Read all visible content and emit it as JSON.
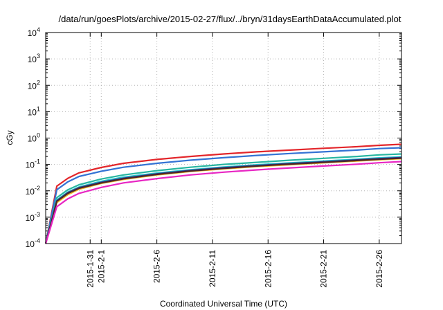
{
  "chart_data": {
    "type": "line",
    "title": "/data/run/goesPlots/archive/2015-02-27/flux/../bryn/31daysEarthDataAccumulated.plot",
    "xlabel": "Coordinated Universal Time (UTC)",
    "ylabel": "cGy",
    "y_scale": "log",
    "ylim": [
      0.0001,
      10000
    ],
    "xlim": [
      "2015-01-27",
      "2015-02-28"
    ],
    "grid": true,
    "x_ticks": [
      "2015-1-31",
      "2015-2-1",
      "2015-2-6",
      "2015-2-11",
      "2015-2-16",
      "2015-2-21",
      "2015-2-26"
    ],
    "y_ticks": [
      {
        "base": "10",
        "exp": "-4"
      },
      {
        "base": "10",
        "exp": "-3"
      },
      {
        "base": "10",
        "exp": "-2"
      },
      {
        "base": "10",
        "exp": "-1"
      },
      {
        "base": "10",
        "exp": "0"
      },
      {
        "base": "10",
        "exp": "1"
      },
      {
        "base": "10",
        "exp": "2"
      },
      {
        "base": "10",
        "exp": "3"
      },
      {
        "base": "10",
        "exp": "4"
      }
    ],
    "x": [
      "2015-01-27",
      "2015-01-28",
      "2015-01-29",
      "2015-01-30",
      "2015-02-01",
      "2015-02-03",
      "2015-02-06",
      "2015-02-09",
      "2015-02-12",
      "2015-02-15",
      "2015-02-18",
      "2015-02-21",
      "2015-02-24",
      "2015-02-26",
      "2015-02-28"
    ],
    "series": [
      {
        "color": "#e3262b",
        "values": [
          0.0001,
          0.015,
          0.03,
          0.048,
          0.077,
          0.11,
          0.155,
          0.2,
          0.25,
          0.3,
          0.35,
          0.41,
          0.47,
          0.53,
          0.58
        ]
      },
      {
        "color": "#3473d4",
        "values": [
          0.0001,
          0.011,
          0.022,
          0.035,
          0.055,
          0.078,
          0.11,
          0.145,
          0.18,
          0.22,
          0.26,
          0.3,
          0.35,
          0.4,
          0.43
        ]
      },
      {
        "color": "#27b6a0",
        "values": [
          0.0001,
          0.0055,
          0.011,
          0.017,
          0.028,
          0.04,
          0.058,
          0.078,
          0.1,
          0.12,
          0.145,
          0.17,
          0.2,
          0.23,
          0.25
        ]
      },
      {
        "color": "#27c7d0",
        "values": [
          0.0001,
          0.0045,
          0.009,
          0.014,
          0.023,
          0.033,
          0.047,
          0.063,
          0.08,
          0.097,
          0.115,
          0.135,
          0.158,
          0.178,
          0.195
        ]
      },
      {
        "color": "#f0b41c",
        "values": [
          0.0001,
          0.0036,
          0.0072,
          0.0115,
          0.019,
          0.027,
          0.04,
          0.054,
          0.068,
          0.083,
          0.098,
          0.115,
          0.135,
          0.15,
          0.165
        ]
      },
      {
        "color": "#2f3d8e",
        "values": [
          0.0001,
          0.0042,
          0.0085,
          0.0132,
          0.021,
          0.03,
          0.044,
          0.059,
          0.075,
          0.091,
          0.108,
          0.126,
          0.148,
          0.166,
          0.182
        ]
      },
      {
        "color": "#4a2530",
        "values": [
          0.0001,
          0.004,
          0.008,
          0.0125,
          0.02,
          0.0285,
          0.042,
          0.056,
          0.071,
          0.087,
          0.103,
          0.12,
          0.141,
          0.158,
          0.173
        ]
      },
      {
        "color": "#e826c3",
        "values": [
          0.0001,
          0.0025,
          0.005,
          0.008,
          0.0135,
          0.02,
          0.029,
          0.04,
          0.051,
          0.062,
          0.074,
          0.087,
          0.102,
          0.116,
          0.128
        ]
      }
    ]
  }
}
